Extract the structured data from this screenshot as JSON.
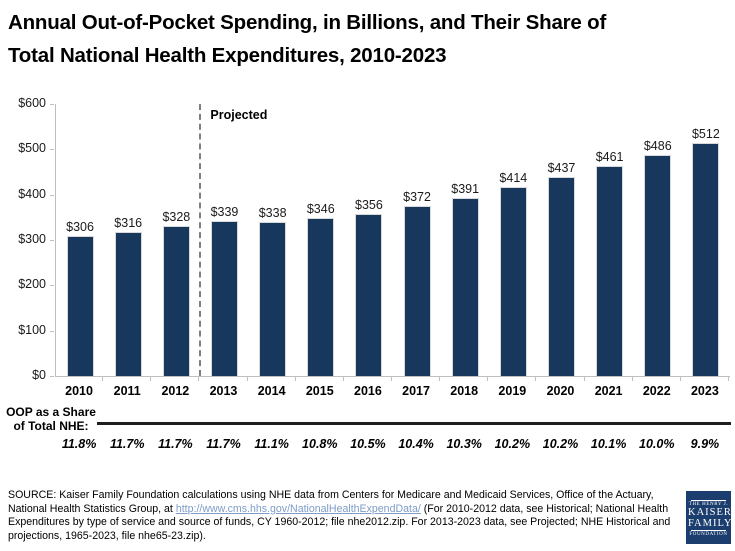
{
  "title": {
    "line1": "Annual Out-of-Pocket Spending, in Billions, and Their Share of",
    "line2": "Total National Health Expenditures, 2010-2023"
  },
  "chart_data": {
    "type": "bar",
    "title": "Annual Out-of-Pocket Spending, in Billions, and Their Share of Total National Health Expenditures, 2010-2023",
    "categories": [
      "2010",
      "2011",
      "2012",
      "2013",
      "2014",
      "2015",
      "2016",
      "2017",
      "2018",
      "2019",
      "2020",
      "2021",
      "2022",
      "2023"
    ],
    "values": [
      306,
      316,
      328,
      339,
      338,
      346,
      356,
      372,
      391,
      414,
      437,
      461,
      486,
      512
    ],
    "value_labels": [
      "$306",
      "$316",
      "$328",
      "$339",
      "$338",
      "$346",
      "$356",
      "$372",
      "$391",
      "$414",
      "$437",
      "$461",
      "$486",
      "$512"
    ],
    "y_ticks": [
      "$0",
      "$100",
      "$200",
      "$300",
      "$400",
      "$500",
      "$600"
    ],
    "ylim": [
      0,
      600
    ],
    "xlabel": "",
    "ylabel": "",
    "grid": "off",
    "legend": "none",
    "annotations": {
      "projected_label": "Projected",
      "projected_divider_after_category": "2012"
    },
    "secondary_row": {
      "label_line1": "OOP as a Share",
      "label_line2": "of Total NHE:",
      "values": [
        "11.8%",
        "11.7%",
        "11.7%",
        "11.7%",
        "11.1%",
        "10.8%",
        "10.5%",
        "10.4%",
        "10.3%",
        "10.2%",
        "10.2%",
        "10.1%",
        "10.0%",
        "9.9%"
      ]
    }
  },
  "colors": {
    "bar": "#17375D",
    "link": "#7e9dc8",
    "logo_background": "#1c3e6e"
  },
  "source": {
    "prefix": "SOURCE: Kaiser Family Foundation calculations using NHE data from Centers for Medicare and Medicaid Services, Office of the Actuary, National Health Statistics Group, at ",
    "link_text": "http://www.cms.hhs.gov/NationalHealthExpendData/",
    "suffix": " (For 2010-2012 data, see Historical; National Health Expenditures by type of service and source of funds, CY 1960-2012; file nhe2012.zip. For 2013-2023 data, see Projected; NHE Historical and projections, 1965-2023,  file nhe65-23.zip)."
  },
  "logo": {
    "line1": "THE HENRY J.",
    "line2": "KAISER",
    "line3": "FAMILY",
    "line4": "FOUNDATION"
  }
}
